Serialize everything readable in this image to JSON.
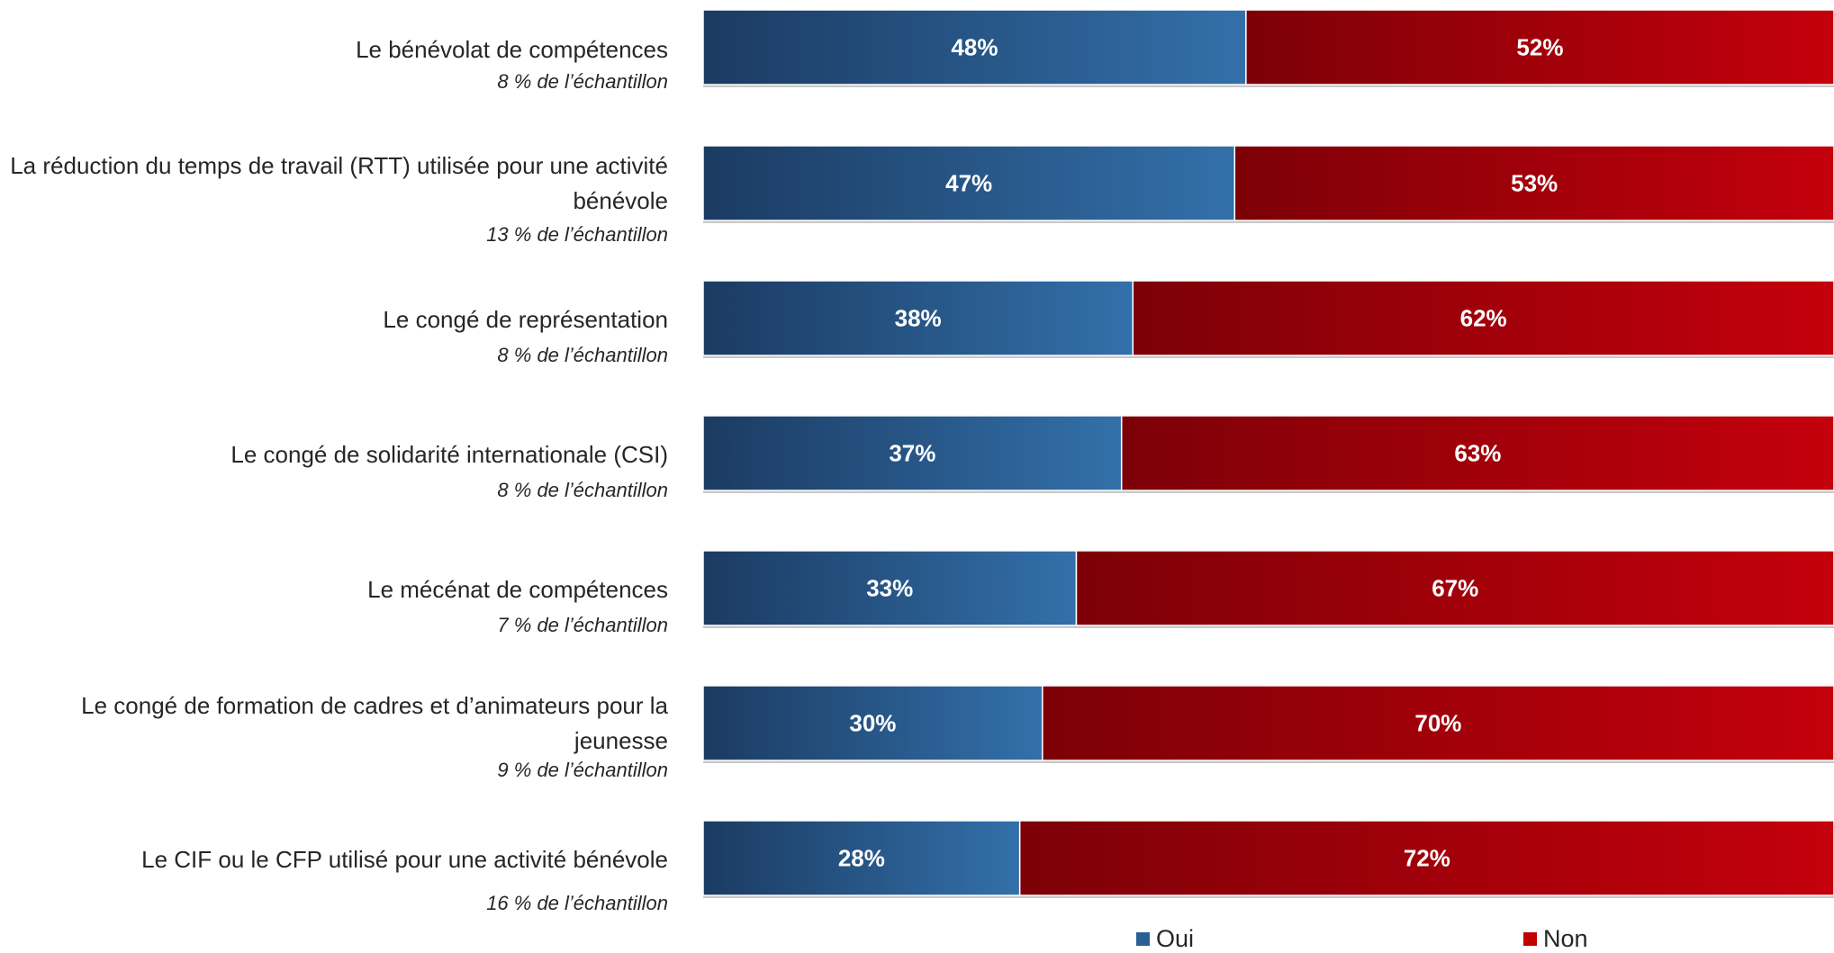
{
  "chart_data": {
    "type": "bar",
    "orientation": "horizontal",
    "stacked": true,
    "categories": [
      {
        "label": "Le bénévolat de compétences",
        "sample": "8 % de l’échantillon"
      },
      {
        "label": "La réduction du temps de travail (RTT) utilisée pour une activité bénévole",
        "sample": "13 % de l’échantillon"
      },
      {
        "label": "Le congé de représentation",
        "sample": "8 % de l’échantillon"
      },
      {
        "label": "Le congé de solidarité internationale (CSI)",
        "sample": "8 % de l’échantillon"
      },
      {
        "label": "Le mécénat de compétences",
        "sample": "7 % de l’échantillon"
      },
      {
        "label": "Le congé de formation de cadres et d’animateurs pour la jeunesse",
        "sample": "9 % de l’échantillon"
      },
      {
        "label": "Le CIF ou le CFP utilisé pour une activité bénévole",
        "sample": "16 % de l’échantillon"
      }
    ],
    "series": [
      {
        "name": "Oui",
        "color": "#2a5f96",
        "values": [
          48,
          47,
          38,
          37,
          33,
          30,
          28
        ]
      },
      {
        "name": "Non",
        "color": "#a30008",
        "values": [
          52,
          53,
          62,
          63,
          67,
          70,
          72
        ]
      }
    ],
    "value_suffix": "%",
    "xlim": [
      0,
      100
    ],
    "grid": false,
    "legend_position": "bottom"
  }
}
